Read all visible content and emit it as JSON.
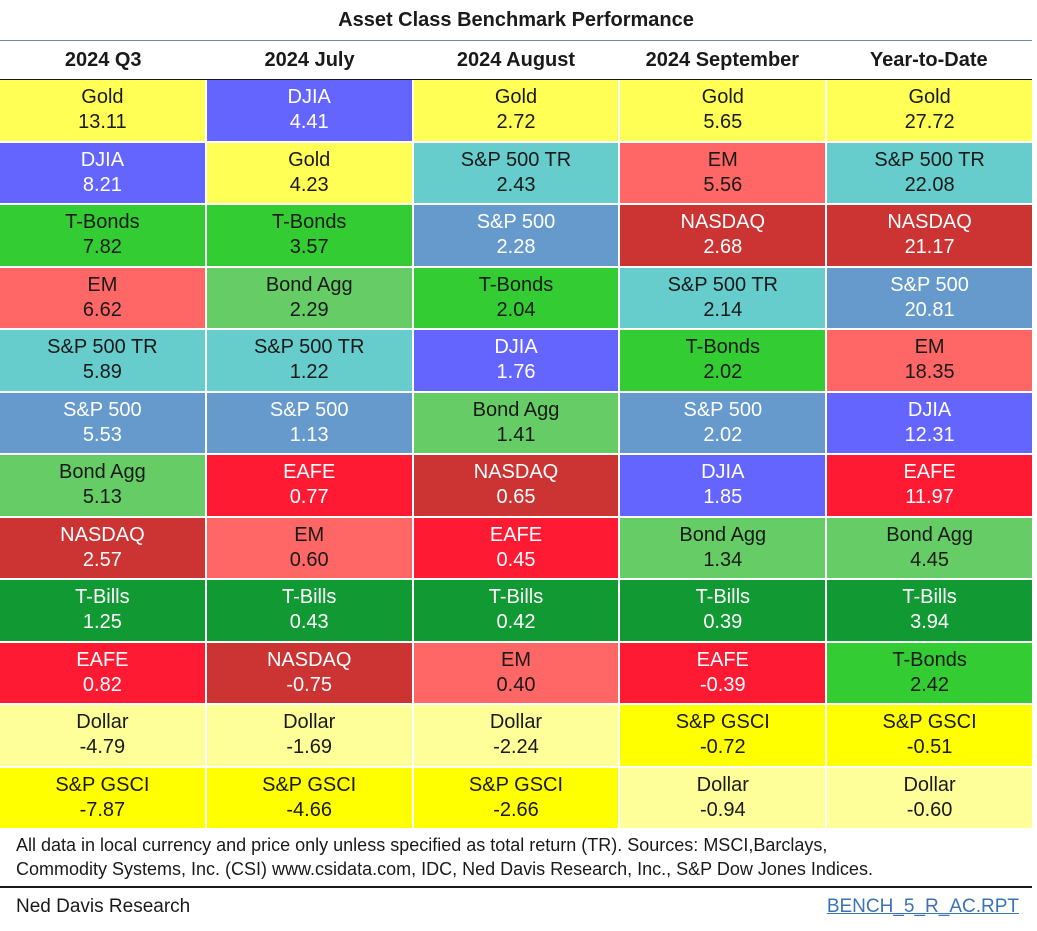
{
  "chart_data": {
    "type": "table",
    "title": "Asset Class Benchmark Performance",
    "columns": [
      "2024 Q3",
      "2024 July",
      "2024 August",
      "2024 September",
      "Year-to-Date"
    ],
    "rows": [
      [
        {
          "name": "Gold",
          "value": "13.11"
        },
        {
          "name": "DJIA",
          "value": "4.41"
        },
        {
          "name": "Gold",
          "value": "2.72"
        },
        {
          "name": "Gold",
          "value": "5.65"
        },
        {
          "name": "Gold",
          "value": "27.72"
        }
      ],
      [
        {
          "name": "DJIA",
          "value": "8.21"
        },
        {
          "name": "Gold",
          "value": "4.23"
        },
        {
          "name": "S&P 500 TR",
          "value": "2.43"
        },
        {
          "name": "EM",
          "value": "5.56"
        },
        {
          "name": "S&P 500 TR",
          "value": "22.08"
        }
      ],
      [
        {
          "name": "T-Bonds",
          "value": "7.82"
        },
        {
          "name": "T-Bonds",
          "value": "3.57"
        },
        {
          "name": "S&P 500",
          "value": "2.28"
        },
        {
          "name": "NASDAQ",
          "value": "2.68"
        },
        {
          "name": "NASDAQ",
          "value": "21.17"
        }
      ],
      [
        {
          "name": "EM",
          "value": "6.62"
        },
        {
          "name": "Bond Agg",
          "value": "2.29"
        },
        {
          "name": "T-Bonds",
          "value": "2.04"
        },
        {
          "name": "S&P 500 TR",
          "value": "2.14"
        },
        {
          "name": "S&P 500",
          "value": "20.81"
        }
      ],
      [
        {
          "name": "S&P 500 TR",
          "value": "5.89"
        },
        {
          "name": "S&P 500 TR",
          "value": "1.22"
        },
        {
          "name": "DJIA",
          "value": "1.76"
        },
        {
          "name": "T-Bonds",
          "value": "2.02"
        },
        {
          "name": "EM",
          "value": "18.35"
        }
      ],
      [
        {
          "name": "S&P 500",
          "value": "5.53"
        },
        {
          "name": "S&P 500",
          "value": "1.13"
        },
        {
          "name": "Bond Agg",
          "value": "1.41"
        },
        {
          "name": "S&P 500",
          "value": "2.02"
        },
        {
          "name": "DJIA",
          "value": "12.31"
        }
      ],
      [
        {
          "name": "Bond Agg",
          "value": "5.13"
        },
        {
          "name": "EAFE",
          "value": "0.77"
        },
        {
          "name": "NASDAQ",
          "value": "0.65"
        },
        {
          "name": "DJIA",
          "value": "1.85"
        },
        {
          "name": "EAFE",
          "value": "11.97"
        }
      ],
      [
        {
          "name": "NASDAQ",
          "value": "2.57"
        },
        {
          "name": "EM",
          "value": "0.60"
        },
        {
          "name": "EAFE",
          "value": "0.45"
        },
        {
          "name": "Bond Agg",
          "value": "1.34"
        },
        {
          "name": "Bond Agg",
          "value": "4.45"
        }
      ],
      [
        {
          "name": "T-Bills",
          "value": "1.25"
        },
        {
          "name": "T-Bills",
          "value": "0.43"
        },
        {
          "name": "T-Bills",
          "value": "0.42"
        },
        {
          "name": "T-Bills",
          "value": "0.39"
        },
        {
          "name": "T-Bills",
          "value": "3.94"
        }
      ],
      [
        {
          "name": "EAFE",
          "value": "0.82"
        },
        {
          "name": "NASDAQ",
          "value": "-0.75"
        },
        {
          "name": "EM",
          "value": "0.40"
        },
        {
          "name": "EAFE",
          "value": "-0.39"
        },
        {
          "name": "T-Bonds",
          "value": "2.42"
        }
      ],
      [
        {
          "name": "Dollar",
          "value": "-4.79"
        },
        {
          "name": "Dollar",
          "value": "-1.69"
        },
        {
          "name": "Dollar",
          "value": "-2.24"
        },
        {
          "name": "S&P GSCI",
          "value": "-0.72"
        },
        {
          "name": "S&P GSCI",
          "value": "-0.51"
        }
      ],
      [
        {
          "name": "S&P GSCI",
          "value": "-7.87"
        },
        {
          "name": "S&P GSCI",
          "value": "-4.66"
        },
        {
          "name": "S&P GSCI",
          "value": "-2.66"
        },
        {
          "name": "Dollar",
          "value": "-0.94"
        },
        {
          "name": "Dollar",
          "value": "-0.60"
        }
      ]
    ],
    "asset_colors": {
      "Gold": {
        "bg": "#ffff55",
        "fg": "#1a1a1a"
      },
      "DJIA": {
        "bg": "#6464ff",
        "fg": "#ffffff"
      },
      "S&P 500 TR": {
        "bg": "#66cccc",
        "fg": "#1a1a1a"
      },
      "EM": {
        "bg": "#ff6666",
        "fg": "#1a1a1a"
      },
      "NASDAQ": {
        "bg": "#cc3333",
        "fg": "#ffffff"
      },
      "T-Bonds": {
        "bg": "#33cc33",
        "fg": "#1a1a1a"
      },
      "S&P 500": {
        "bg": "#6699cc",
        "fg": "#ffffff"
      },
      "Bond Agg": {
        "bg": "#66cc66",
        "fg": "#1a1a1a"
      },
      "EAFE": {
        "bg": "#ff1a33",
        "fg": "#ffffff"
      },
      "T-Bills": {
        "bg": "#119933",
        "fg": "#ffffff"
      },
      "Dollar": {
        "bg": "#ffff99",
        "fg": "#1a1a1a"
      },
      "S&P GSCI": {
        "bg": "#ffff00",
        "fg": "#1a1a1a"
      }
    }
  },
  "footnote": {
    "line1": "All data in local currency and price only unless specified as total return (TR). Sources: MSCI,Barclays,",
    "line2": "Commodity Systems, Inc. (CSI) www.csidata.com, IDC, Ned Davis Research, Inc., S&P Dow Jones Indices."
  },
  "source_label": "Ned Davis Research",
  "report_code": "BENCH_5_R_AC.RPT"
}
